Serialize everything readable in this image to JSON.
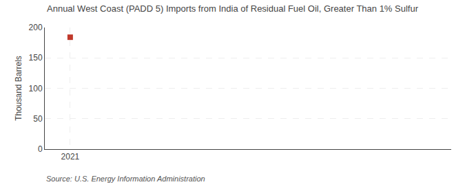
{
  "chart_data": {
    "type": "scatter",
    "title": "Annual West Coast (PADD 5) Imports from India of Residual Fuel Oil, Greater Than 1% Sulfur",
    "ylabel": "Thousand Barrels",
    "annotations": [
      "Source: U.S. Energy Information Administration"
    ],
    "x": [
      2021
    ],
    "values": [
      184
    ],
    "color": "#c0392b",
    "marker": "square",
    "xlim": [
      2020.4,
      2030
    ],
    "xticks": [
      2021
    ],
    "ylim": [
      0,
      200
    ],
    "yticks": [
      0,
      50,
      100,
      150,
      200
    ],
    "grid": true
  }
}
